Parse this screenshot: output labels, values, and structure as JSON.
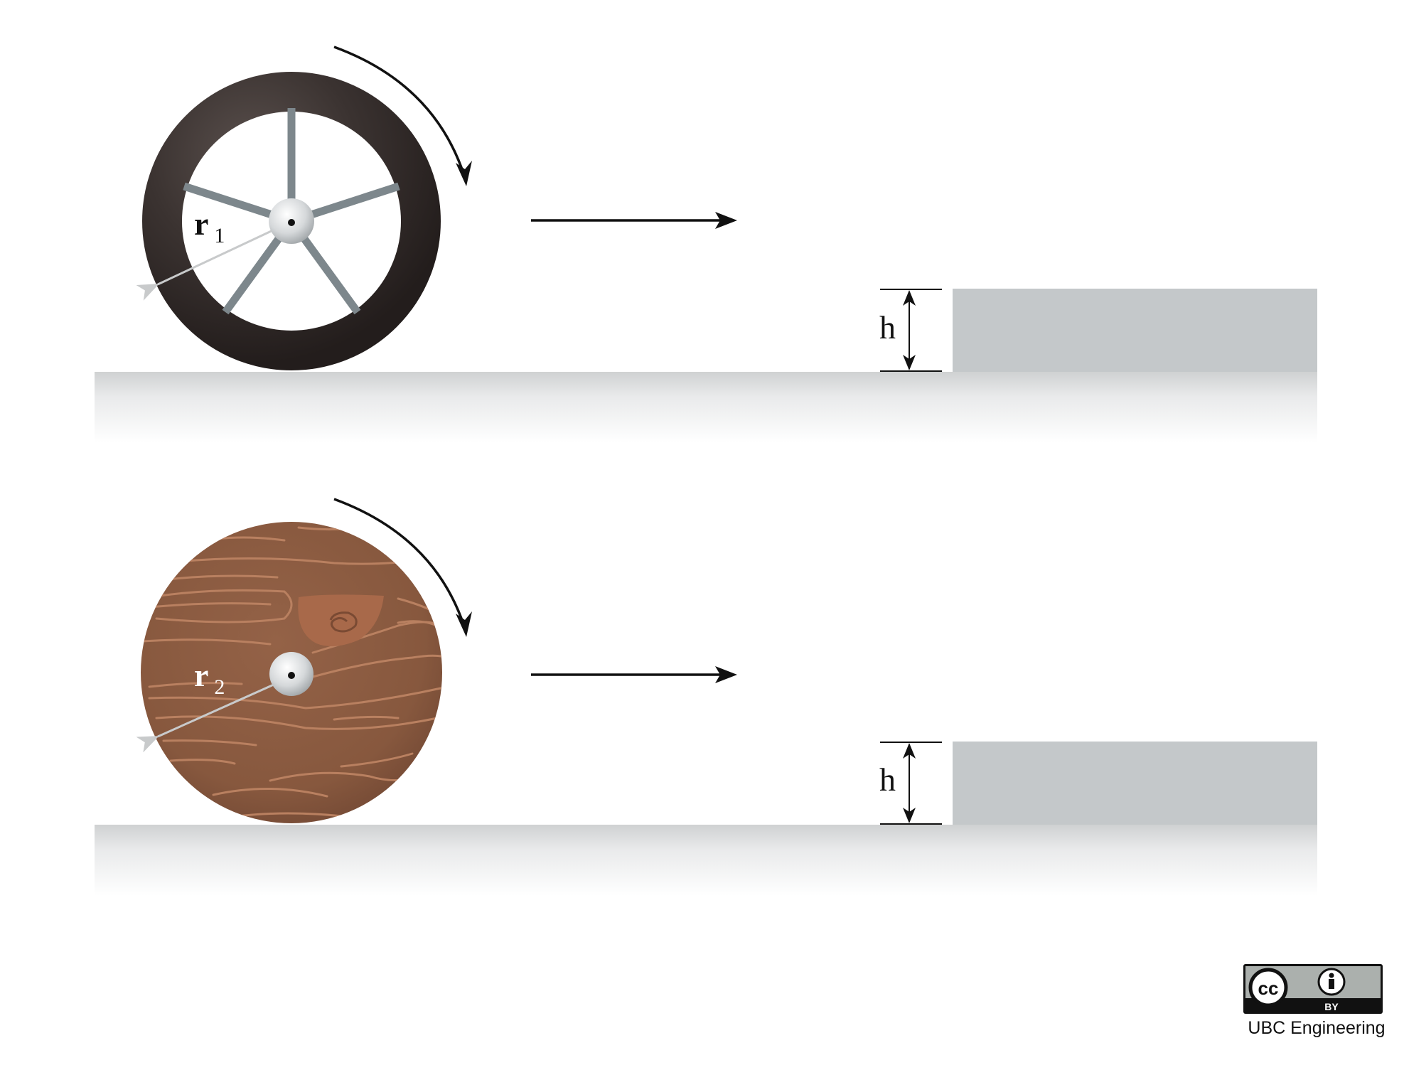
{
  "wheel_1": {
    "radius_label": "r",
    "radius_subscript": "1",
    "material": "spoked-wheel"
  },
  "wheel_2": {
    "radius_label": "r",
    "radius_subscript": "2",
    "material": "wood-disc"
  },
  "step_1": {
    "height_label": "h"
  },
  "step_2": {
    "height_label": "h"
  },
  "license": {
    "badge_cc": "cc",
    "badge_by": "BY"
  },
  "credit": "UBC Engineering",
  "colors": {
    "tire": "#3a3230",
    "spoke": "#7d878c",
    "hub": "#d9dcde",
    "wood": "#8a5a40",
    "wood_grain": "#b98060",
    "step": "#c4c8ca",
    "ground_shadow": "#d0d2d3",
    "radius_arrow": "#c8cacb",
    "arrow": "#111111"
  }
}
